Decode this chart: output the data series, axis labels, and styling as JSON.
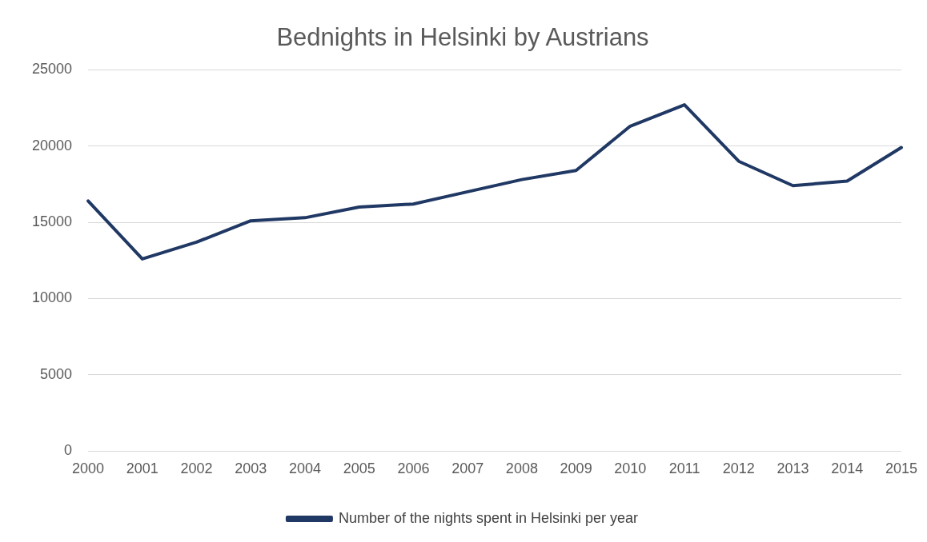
{
  "chart_data": {
    "type": "line",
    "title": "Bednights in Helsinki by Austrians",
    "categories": [
      "2000",
      "2001",
      "2002",
      "2003",
      "2004",
      "2005",
      "2006",
      "2007",
      "2008",
      "2009",
      "2010",
      "2011",
      "2012",
      "2013",
      "2014",
      "2015"
    ],
    "series": [
      {
        "name": "Number of the nights spent in Helsinki per year",
        "color": "#203864",
        "values": [
          16400,
          12600,
          13700,
          15100,
          15300,
          16000,
          16200,
          17000,
          17800,
          18400,
          21300,
          22700,
          19000,
          17400,
          17700,
          19900
        ]
      }
    ],
    "ylim": [
      0,
      25000
    ],
    "yticks": [
      0,
      5000,
      10000,
      15000,
      20000,
      25000
    ],
    "grid": "y",
    "legend": "bottom",
    "marker": "none",
    "line_style": "solid"
  }
}
